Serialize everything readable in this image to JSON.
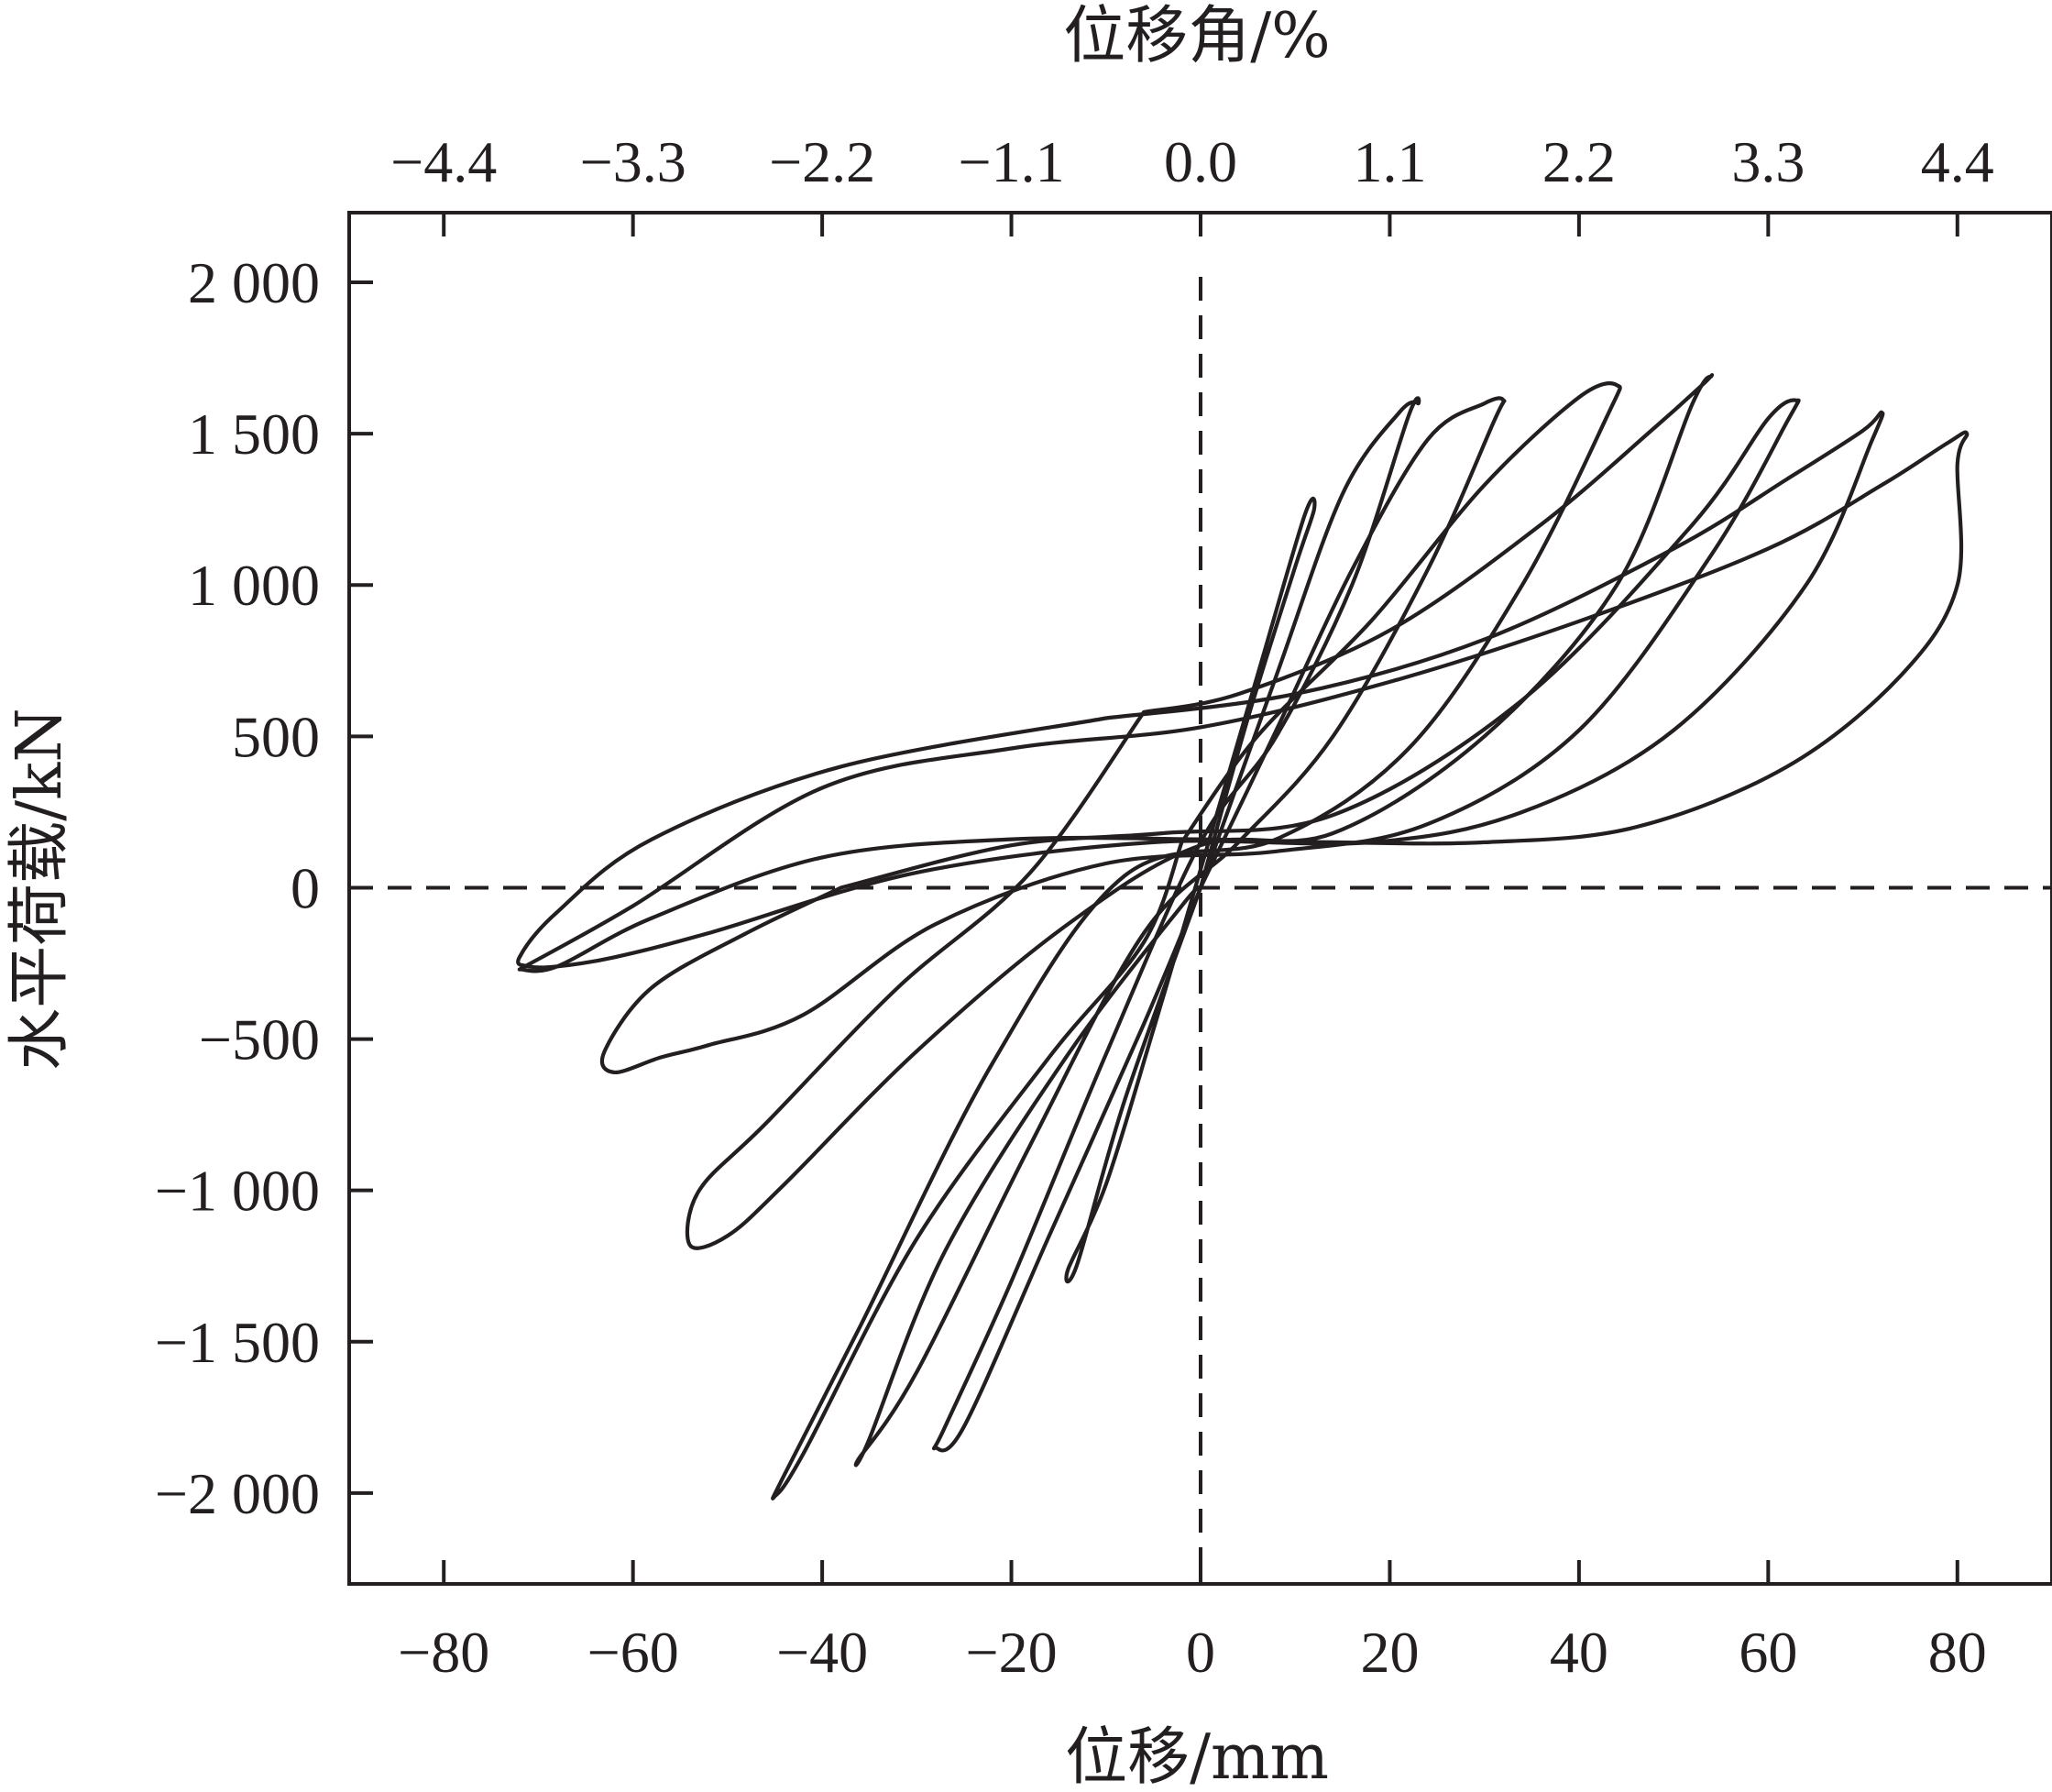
{
  "chart_data": {
    "type": "line",
    "title": "",
    "xlabel": "位移/mm",
    "ylabel": "水平荷载/kN",
    "x2label": "位移角/%",
    "xlim": [
      -90,
      90
    ],
    "ylim": [
      -2300,
      2230
    ],
    "x_ticks": [
      -80,
      -60,
      -40,
      -20,
      0,
      20,
      40,
      60,
      80
    ],
    "x_tick_labels": [
      "−80",
      "−60",
      "−40",
      "−20",
      "0",
      "20",
      "40",
      "60",
      "80"
    ],
    "y_ticks": [
      2000,
      1500,
      1000,
      500,
      0,
      -500,
      -1000,
      -1500,
      -2000
    ],
    "y_tick_labels": [
      "2 000",
      "1 500",
      "1 000",
      "500",
      "0",
      "−500",
      "−1 000",
      "−1 500",
      "−2 000"
    ],
    "x2_ticks": [
      -4.4,
      -3.3,
      -2.2,
      -1.1,
      0.0,
      1.1,
      2.2,
      3.3,
      4.4
    ],
    "x2_tick_labels": [
      "−4.4",
      "−3.3",
      "−2.2",
      "−1.1",
      "0.0",
      "1.1",
      "2.2",
      "3.3",
      "4.4"
    ],
    "grid": false,
    "legend": "none",
    "reference_lines": {
      "x": 0,
      "y": 0,
      "style": "dashed"
    },
    "series": [
      {
        "loop": 1,
        "x": [
          0,
          5,
          10,
          12,
          11,
          6,
          0,
          -5,
          -10,
          -14,
          -13,
          -8,
          0
        ],
        "y": [
          0,
          560,
          1060,
          1250,
          1230,
          700,
          60,
          -470,
          -980,
          -1260,
          -1240,
          -700,
          0
        ]
      },
      {
        "loop": 2,
        "x": [
          0,
          8,
          15,
          21,
          23,
          22,
          16,
          8,
          0,
          -10,
          -20,
          -27,
          -28,
          -25,
          -16,
          -6,
          0
        ],
        "y": [
          0,
          700,
          1300,
          1570,
          1600,
          1560,
          1000,
          500,
          150,
          -550,
          -1300,
          -1780,
          -1850,
          -1780,
          -1150,
          -450,
          0
        ]
      },
      {
        "loop": 3,
        "x": [
          0,
          8,
          16,
          24,
          30,
          32,
          31,
          24,
          14,
          4,
          -6,
          -18,
          -30,
          -36,
          -35,
          -27,
          -14,
          -2,
          0
        ],
        "y": [
          0,
          520,
          1050,
          1480,
          1600,
          1610,
          1540,
          1050,
          500,
          150,
          -150,
          -850,
          -1600,
          -1880,
          -1820,
          -1200,
          -550,
          -60,
          0
        ]
      },
      {
        "loop": 4,
        "x": [
          -2,
          6,
          18,
          30,
          40,
          44,
          43,
          34,
          22,
          8,
          -8,
          -22,
          -36,
          -44,
          -45,
          -42,
          -30,
          -16,
          -6,
          -2
        ],
        "y": [
          150,
          500,
          880,
          1330,
          1620,
          1660,
          1560,
          1000,
          460,
          160,
          40,
          -580,
          -1450,
          -1940,
          -2010,
          -1870,
          -1160,
          -560,
          -180,
          150
        ]
      },
      {
        "loop": 5,
        "x": [
          -6,
          4,
          20,
          36,
          48,
          53,
          54,
          52,
          44,
          30,
          14,
          0,
          -14,
          -30,
          -44,
          -50,
          -54,
          -53,
          -46,
          -32,
          -18,
          -6
        ],
        "y": [
          580,
          640,
          850,
          1200,
          1520,
          1660,
          1690,
          1600,
          1000,
          500,
          180,
          140,
          -120,
          -540,
          -980,
          -1150,
          -1180,
          -1000,
          -780,
          -330,
          50,
          580
        ]
      },
      {
        "loop": 6,
        "x": [
          -38,
          -20,
          -4,
          14,
          34,
          52,
          60,
          63,
          62,
          54,
          40,
          24,
          8,
          -10,
          -28,
          -42,
          -52,
          -57,
          -62,
          -63,
          -58,
          -48,
          -38
        ],
        "y": [
          0,
          140,
          180,
          240,
          620,
          1200,
          1550,
          1610,
          1540,
          1100,
          520,
          210,
          120,
          80,
          -120,
          -420,
          -520,
          -560,
          -610,
          -540,
          -330,
          -150,
          0
        ]
      },
      {
        "loop": 7,
        "x": [
          -10,
          10,
          30,
          50,
          62,
          70,
          72,
          71,
          64,
          50,
          34,
          18,
          -5,
          -30,
          -52,
          -62,
          -68,
          -71,
          -72,
          -68,
          -58,
          -38,
          -10
        ],
        "y": [
          560,
          640,
          820,
          1120,
          1350,
          1510,
          1570,
          1480,
          1000,
          520,
          250,
          150,
          150,
          50,
          -150,
          -230,
          -260,
          -260,
          -230,
          -80,
          160,
          400,
          560
        ]
      },
      {
        "loop": 8,
        "x": [
          -72,
          -60,
          -40,
          -20,
          0,
          20,
          40,
          60,
          72,
          79,
          81,
          80,
          80,
          74,
          62,
          46,
          30,
          14,
          0,
          -20,
          -40,
          -58,
          -68,
          -72
        ],
        "y": [
          -270,
          -60,
          330,
          460,
          530,
          680,
          880,
          1120,
          1330,
          1470,
          1500,
          1400,
          1000,
          700,
          400,
          200,
          150,
          150,
          160,
          160,
          100,
          -100,
          -260,
          -270
        ]
      }
    ]
  }
}
